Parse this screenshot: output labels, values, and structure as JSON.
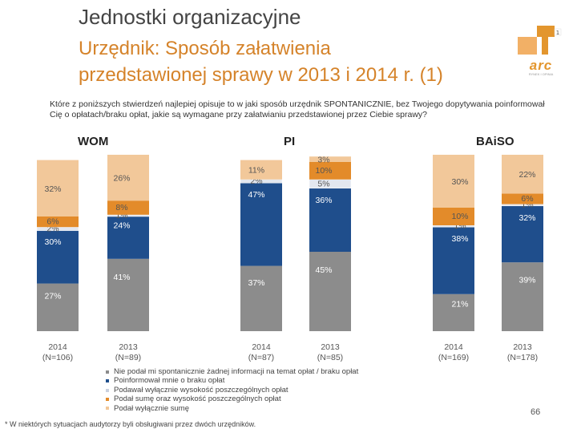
{
  "header": {
    "title": "Jednostki organizacyjne",
    "subtitle_line1": "Urzędnik: Sposób załatwienia",
    "subtitle_line2": "przedstawionej sprawy w 2013 i 2014 r. (1)",
    "logo_text": "arc",
    "logo_tagline": "RYNEK I OPINIA"
  },
  "question": "Które z poniższych stwierdzeń najlepiej opisuje to w jaki sposób urzędnik SPONTANICZNIE, bez Twojego dopytywania poinformował Cię o opłatach/braku opłat, jakie są wymagane przy załatwianiu przedstawionej przez Ciebie sprawy?",
  "colors": {
    "none": "#8c8c8c",
    "free": "#1f4e8c",
    "amount": "#e3e7ef",
    "sum_amount": "#e38b2a",
    "sum": "#f2c89a"
  },
  "chart_data": {
    "type": "bar",
    "stacked": true,
    "orientation": "vertical",
    "ylim": [
      0,
      100
    ],
    "groups": [
      {
        "name": "WOM",
        "bars": [
          0,
          1
        ]
      },
      {
        "name": "PI",
        "bars": [
          2,
          3
        ]
      },
      {
        "name": "BAiSO",
        "bars": [
          4,
          5
        ]
      }
    ],
    "categories": [
      "2014 (N=106)",
      "2013 (N=89)",
      "2014 (N=87)",
      "2013 (N=85)",
      "2014 (N=169)",
      "2013 (N=178)"
    ],
    "category_years": [
      "2014",
      "2013",
      "2014",
      "2013",
      "2014",
      "2013"
    ],
    "category_ns": [
      "(N=106)",
      "(N=89)",
      "(N=87)",
      "(N=85)",
      "(N=169)",
      "(N=178)"
    ],
    "series": [
      {
        "name": "Nie podał mi spontanicznie żadnej informacji na temat opłat / braku opłat",
        "color": "#8c8c8c",
        "values": [
          27,
          41,
          37,
          45,
          21,
          39
        ]
      },
      {
        "name": "Poinformował mnie o braku opłat",
        "color": "#1f4e8c",
        "values": [
          30,
          24,
          47,
          36,
          38,
          32
        ]
      },
      {
        "name": "Podawał wyłącznie wysokość poszczególnych opłat",
        "color": "#e3e7ef",
        "values": [
          2,
          1,
          2,
          5,
          1,
          1
        ]
      },
      {
        "name": "Podał sumę oraz wysokość poszczególnych opłat",
        "color": "#e38b2a",
        "values": [
          6,
          8,
          0,
          10,
          10,
          6
        ]
      },
      {
        "name": "Podał wyłącznie sumę",
        "color": "#f2c89a",
        "values": [
          32,
          26,
          11,
          3,
          30,
          22
        ]
      }
    ],
    "data_labels": [
      [
        "27%",
        "30%",
        "2%",
        "6%",
        "32%"
      ],
      [
        "41%",
        "24%",
        "1%",
        "8%",
        "26%"
      ],
      [
        "37%",
        "47%",
        "2%",
        "",
        "11%"
      ],
      [
        "45%",
        "36%",
        "5%",
        "10%",
        "3%"
      ],
      [
        "21%",
        "38%",
        "1%",
        "10%",
        "30%"
      ],
      [
        "39%",
        "32%",
        "1%",
        "6%",
        "22%"
      ]
    ]
  },
  "footnote": "* W niektórych sytuacjach audytorzy byli obsługiwani przez dwóch urzędników.",
  "page_number": "66"
}
